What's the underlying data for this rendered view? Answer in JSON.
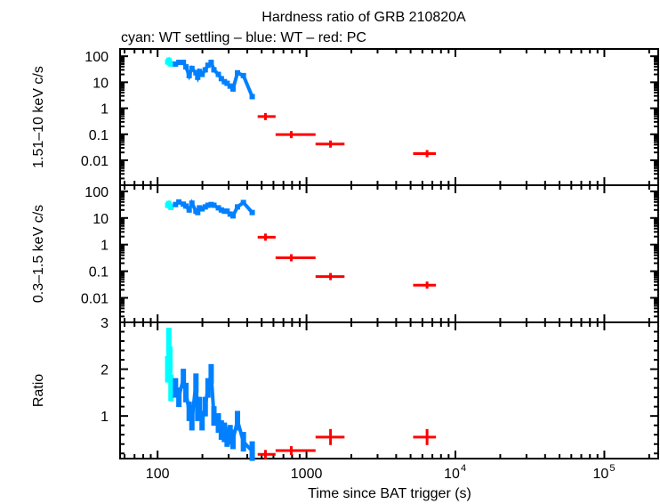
{
  "chart_data": {
    "type": "scatter",
    "title": "Hardness ratio of GRB 210820A",
    "subtitle": "cyan: WT settling – blue: WT – red: PC",
    "xlabel": "Time since BAT trigger (s)",
    "xscale": "log",
    "xlim": [
      56,
      230000
    ],
    "xticks": [
      {
        "v": 100,
        "label": "100"
      },
      {
        "v": 1000,
        "label": "1000"
      },
      {
        "v": 10000,
        "label": "10",
        "exp": "4"
      },
      {
        "v": 100000,
        "label": "10",
        "exp": "5"
      }
    ],
    "colors": {
      "wt_settling": "#00ffff",
      "wt": "#0080ff",
      "pc": "#ff0000"
    },
    "panels": [
      {
        "id": "hard",
        "ylabel": "1.51–10 keV c/s",
        "yscale": "log",
        "ylim": [
          0.0011,
          190
        ],
        "yticks": [
          {
            "v": 100,
            "label": "100"
          },
          {
            "v": 10,
            "label": "10"
          },
          {
            "v": 1,
            "label": "1"
          },
          {
            "v": 0.1,
            "label": "0.1"
          },
          {
            "v": 0.01,
            "label": "0.01"
          }
        ]
      },
      {
        "id": "soft",
        "ylabel": "0.3–1.5 keV c/s",
        "yscale": "log",
        "ylim": [
          0.0012,
          170
        ],
        "yticks": [
          {
            "v": 100,
            "label": "100"
          },
          {
            "v": 10,
            "label": "10"
          },
          {
            "v": 1,
            "label": "1"
          },
          {
            "v": 0.1,
            "label": "0.1"
          },
          {
            "v": 0.01,
            "label": "0.01"
          }
        ]
      },
      {
        "id": "ratio",
        "ylabel": "Ratio",
        "yscale": "linear",
        "ylim": [
          0.09,
          3
        ],
        "yticks": [
          {
            "v": 3,
            "label": "3"
          },
          {
            "v": 2,
            "label": "2"
          },
          {
            "v": 1,
            "label": "1"
          }
        ]
      }
    ],
    "series": [
      {
        "mode": "wt_settling",
        "x": [
          117,
          119,
          121,
          123
        ],
        "hard": [
          60,
          70,
          55,
          50
        ],
        "soft": [
          30,
          35,
          28,
          25
        ],
        "ratio": [
          2.0,
          2.6,
          2.2,
          1.6
        ]
      },
      {
        "mode": "wt",
        "x": [
          132,
          139,
          149,
          155,
          163,
          170,
          181,
          186,
          191,
          199,
          209,
          218,
          229,
          239,
          256,
          268,
          281,
          293,
          307,
          321,
          344,
          377,
          432
        ],
        "hard": [
          50,
          58,
          58,
          39,
          18,
          34,
          23,
          15.5,
          26,
          20,
          30,
          45,
          58,
          30,
          20,
          13.7,
          10.5,
          9.1,
          7.1,
          5.5,
          23,
          18,
          2.8
        ],
        "soft": [
          32,
          40,
          33,
          28,
          20,
          36,
          18,
          16,
          24,
          22,
          26,
          30,
          32,
          30,
          24,
          20,
          18,
          18,
          14,
          12,
          26,
          38,
          16
        ],
        "ratio": [
          1.6,
          1.4,
          1.8,
          1.5,
          1.1,
          0.9,
          1.7,
          1.1,
          1.2,
          0.9,
          1.2,
          1.6,
          1.9,
          1.0,
          0.85,
          0.7,
          0.65,
          0.55,
          0.6,
          0.5,
          0.9,
          0.45,
          0.25
        ]
      },
      {
        "mode": "pc",
        "x": [
          530,
          790,
          1450,
          6450
        ],
        "xerr_low": [
          470,
          620,
          1150,
          5200
        ],
        "xerr_high": [
          620,
          1150,
          1800,
          7400
        ],
        "hard": [
          0.48,
          0.097,
          0.042,
          0.018
        ],
        "soft": [
          1.9,
          0.32,
          0.063,
          0.03
        ],
        "ratio": [
          0.18,
          0.26,
          0.55,
          0.55
        ]
      }
    ]
  }
}
